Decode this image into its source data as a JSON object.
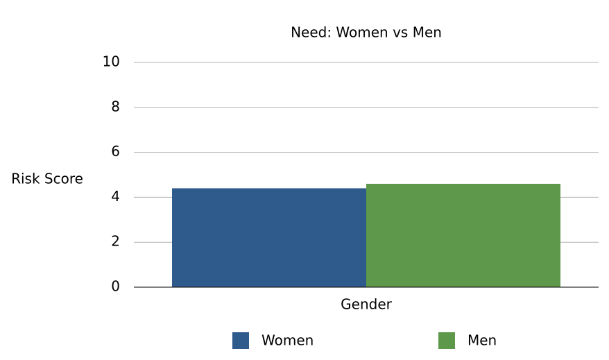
{
  "chart_data": {
    "type": "bar",
    "title": "Need: Women vs Men",
    "y_label": "Risk Score",
    "x_label": "Gender",
    "categories": [
      "Gender"
    ],
    "series": [
      {
        "name": "Women",
        "color": "#2f5a8c",
        "values": [
          4.4
        ]
      },
      {
        "name": "Men",
        "color": "#5e984b",
        "values": [
          4.6
        ]
      }
    ],
    "ylim": [
      0,
      10
    ],
    "yticks": [
      0,
      2,
      4,
      6,
      8,
      10
    ],
    "grid": true
  }
}
